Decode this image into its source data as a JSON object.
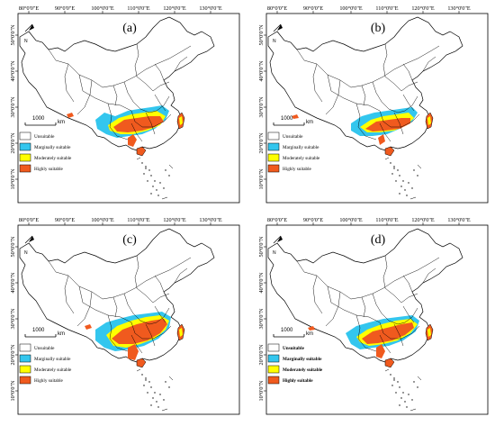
{
  "panels": [
    {
      "label": "(a)",
      "variant": "a",
      "legend_bold": false
    },
    {
      "label": "(b)",
      "variant": "b",
      "legend_bold": false
    },
    {
      "label": "(c)",
      "variant": "c",
      "legend_bold": false
    },
    {
      "label": "(d)",
      "variant": "d",
      "legend_bold": true
    }
  ],
  "longitudes": [
    "80°0'0\"E",
    "90°0'0\"E",
    "100°0'0\"E",
    "110°0'0\"E",
    "120°0'0\"E",
    "130°0'0\"E"
  ],
  "latitudes": [
    "50°0'0\"N",
    "40°0'0\"N",
    "30°0'0\"N",
    "20°0'0\"N",
    "10°0'0\"N"
  ],
  "scale_bar": {
    "value": "1000",
    "unit": "km"
  },
  "north_arrow": "N",
  "legend": [
    {
      "label": "Unsuitable",
      "color": "#ffffff"
    },
    {
      "label": "Marginally suitable",
      "color": "#33c6ee"
    },
    {
      "label": "Moderately suitable",
      "color": "#ffff00"
    },
    {
      "label": "Highly suitable",
      "color": "#f05a1e"
    }
  ]
}
